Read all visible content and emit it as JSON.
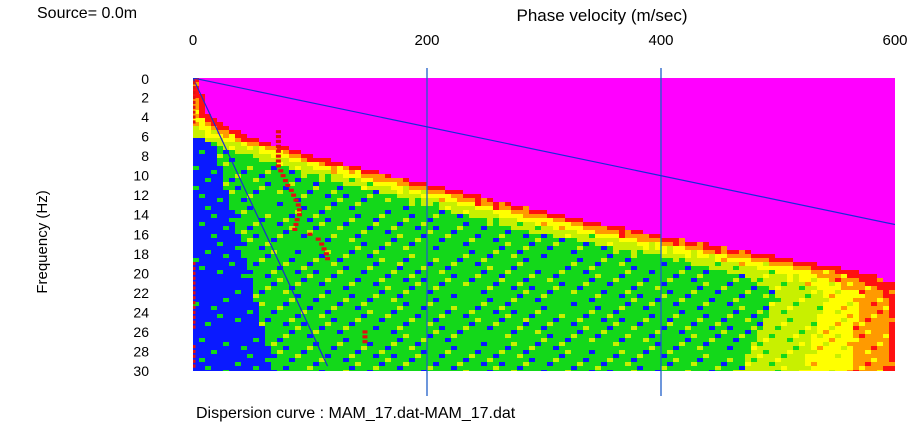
{
  "chart_data": {
    "type": "heatmap",
    "source_label": "Source=  0.0m",
    "xlabel": "Phase velocity (m/sec)",
    "ylabel": "Frequency (Hz)",
    "caption": "Dispersion curve : MAM_17.dat-MAM_17.dat",
    "xlim": [
      0,
      600
    ],
    "ylim": [
      0,
      30
    ],
    "x_ticks": [
      "0",
      "200",
      "400",
      "600"
    ],
    "y_ticks": [
      "0",
      "2",
      "4",
      "6",
      "8",
      "10",
      "12",
      "14",
      "16",
      "18",
      "20",
      "22",
      "24",
      "26",
      "28",
      "30"
    ],
    "grid": "vertical lines at 200 and 400",
    "colormap": [
      "#0a1aff",
      "#13d81a",
      "#c8f000",
      "#ffff00",
      "#ff9a00",
      "#ff1010",
      "#ff00ff"
    ],
    "ridge": [
      {
        "f": 1,
        "v": 2
      },
      {
        "f": 4,
        "v": 8
      },
      {
        "f": 6,
        "v": 40
      },
      {
        "f": 8,
        "v": 95
      },
      {
        "f": 10,
        "v": 160
      },
      {
        "f": 12,
        "v": 230
      },
      {
        "f": 14,
        "v": 300
      },
      {
        "f": 16,
        "v": 380
      },
      {
        "f": 18,
        "v": 470
      },
      {
        "f": 20,
        "v": 560
      },
      {
        "f": 22,
        "v": 600
      }
    ],
    "reference_lines": [
      {
        "name": "upper",
        "from": [
          0,
          0
        ],
        "to": [
          600,
          15
        ]
      },
      {
        "name": "lower",
        "from": [
          0,
          0
        ],
        "to": [
          115,
          29.5
        ]
      }
    ],
    "picks": [
      {
        "v": 0,
        "f": 0.5
      },
      {
        "v": 0,
        "f": 1
      },
      {
        "v": 0,
        "f": 1.5
      },
      {
        "v": 0,
        "f": 2
      },
      {
        "v": 0,
        "f": 2.5
      },
      {
        "v": 0,
        "f": 3
      },
      {
        "v": 0,
        "f": 3.5
      },
      {
        "v": 0,
        "f": 4
      },
      {
        "v": 0,
        "f": 4.5
      },
      {
        "v": 73,
        "f": 5.5
      },
      {
        "v": 73,
        "f": 6
      },
      {
        "v": 73,
        "f": 6.5
      },
      {
        "v": 73,
        "f": 7
      },
      {
        "v": 73,
        "f": 7.5
      },
      {
        "v": 73,
        "f": 8
      },
      {
        "v": 73,
        "f": 8.5
      },
      {
        "v": 73,
        "f": 9
      },
      {
        "v": 75,
        "f": 9.5
      },
      {
        "v": 77,
        "f": 10
      },
      {
        "v": 79,
        "f": 10.5
      },
      {
        "v": 81,
        "f": 11
      },
      {
        "v": 84,
        "f": 11.5
      },
      {
        "v": 86,
        "f": 12
      },
      {
        "v": 88,
        "f": 12.5
      },
      {
        "v": 90,
        "f": 13
      },
      {
        "v": 91,
        "f": 13.5
      },
      {
        "v": 91,
        "f": 14
      },
      {
        "v": 89,
        "f": 14.5
      },
      {
        "v": 88,
        "f": 15
      },
      {
        "v": 87,
        "f": 15.5
      },
      {
        "v": 100,
        "f": 16
      },
      {
        "v": 107,
        "f": 16.5
      },
      {
        "v": 110,
        "f": 17
      },
      {
        "v": 112,
        "f": 17.5
      },
      {
        "v": 114,
        "f": 18
      },
      {
        "v": 115,
        "f": 18.5
      },
      {
        "v": 0,
        "f": 19
      },
      {
        "v": 0,
        "f": 19.5
      },
      {
        "v": 0,
        "f": 20
      },
      {
        "v": 0,
        "f": 20.5
      },
      {
        "v": 0,
        "f": 21
      },
      {
        "v": 0,
        "f": 21.5
      },
      {
        "v": 0,
        "f": 22
      },
      {
        "v": 0,
        "f": 22.5
      },
      {
        "v": 0,
        "f": 23
      },
      {
        "v": 0,
        "f": 23.5
      },
      {
        "v": 0,
        "f": 24
      },
      {
        "v": 0,
        "f": 24.5
      },
      {
        "v": 0,
        "f": 25
      },
      {
        "v": 0,
        "f": 25.5
      },
      {
        "v": 147,
        "f": 26
      },
      {
        "v": 147,
        "f": 26.5
      },
      {
        "v": 147,
        "f": 27
      },
      {
        "v": 0,
        "f": 27.5
      },
      {
        "v": 0,
        "f": 28
      },
      {
        "v": 0,
        "f": 28.5
      },
      {
        "v": 0,
        "f": 29
      },
      {
        "v": 0,
        "f": 29.5
      }
    ]
  }
}
